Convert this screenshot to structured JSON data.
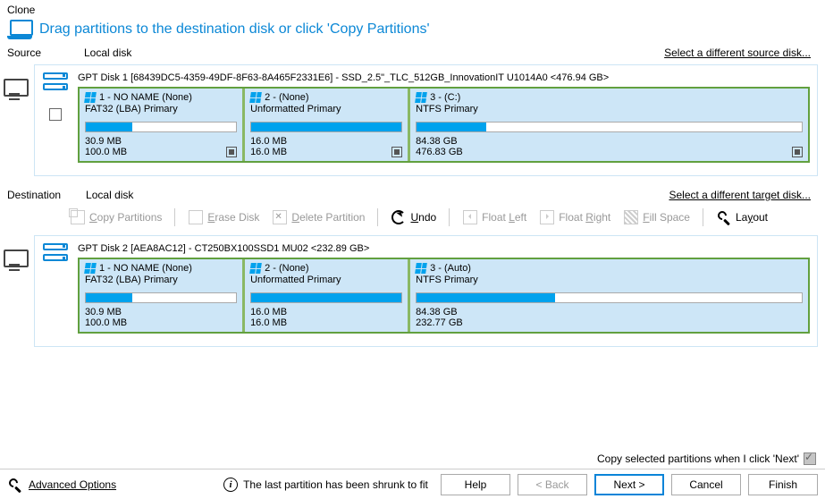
{
  "title": "Clone",
  "instruction": "Drag partitions to the destination disk or click 'Copy Partitions'",
  "source": {
    "label": "Source",
    "sub": "Local disk",
    "link": "Select a different source disk...",
    "disk_title": "GPT Disk 1 [68439DC5-4359-49DF-8F63-8A465F2331E6] - SSD_2.5\"_TLC_512GB_InnovationIT U1014A0  <476.94 GB>",
    "partitions": [
      {
        "name": "1 - NO NAME (None)",
        "type": "FAT32 (LBA) Primary",
        "used": "30.9 MB",
        "total": "100.0 MB",
        "fill_pct": 31,
        "flex": 22,
        "has_square": true
      },
      {
        "name": "2 -  (None)",
        "type": "Unformatted Primary",
        "used": "16.0 MB",
        "total": "16.0 MB",
        "fill_pct": 100,
        "flex": 22,
        "has_square": true
      },
      {
        "name": "3 -  (C:)",
        "type": "NTFS Primary",
        "used": "84.38 GB",
        "total": "476.83 GB",
        "fill_pct": 18,
        "flex": 56,
        "has_square": true
      }
    ]
  },
  "destination": {
    "label": "Destination",
    "sub": "Local disk",
    "link": "Select a different target disk...",
    "disk_title": "GPT Disk 2 [AEA8AC12] - CT250BX100SSD1 MU02  <232.89 GB>",
    "partitions": [
      {
        "name": "1 - NO NAME (None)",
        "type": "FAT32 (LBA) Primary",
        "used": "30.9 MB",
        "total": "100.0 MB",
        "fill_pct": 31,
        "flex": 22,
        "has_square": false
      },
      {
        "name": "2 -  (None)",
        "type": "Unformatted Primary",
        "used": "16.0 MB",
        "total": "16.0 MB",
        "fill_pct": 100,
        "flex": 22,
        "has_square": false
      },
      {
        "name": "3 -  (Auto)",
        "type": "NTFS Primary",
        "used": "84.38 GB",
        "total": "232.77 GB",
        "fill_pct": 36,
        "flex": 56,
        "has_square": false
      }
    ]
  },
  "toolbar": {
    "copy": "Copy Partitions",
    "erase": "Erase Disk",
    "delete": "Delete Partition",
    "undo": "Undo",
    "float_left": "Float Left",
    "float_right": "Float Right",
    "fill": "Fill Space",
    "layout": "Layout"
  },
  "footer": {
    "copy_check_label": "Copy selected partitions when I click 'Next'",
    "advanced": "Advanced Options",
    "msg": "The last partition has been shrunk to fit",
    "help": "Help",
    "back": "< Back",
    "next": "Next >",
    "cancel": "Cancel",
    "finish": "Finish"
  }
}
